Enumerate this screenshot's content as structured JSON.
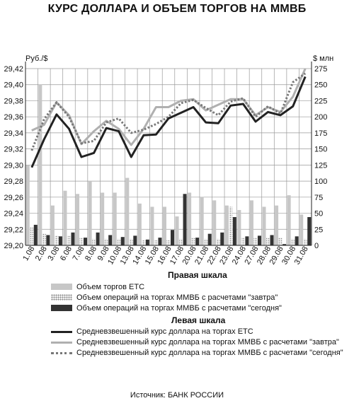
{
  "chart_data": {
    "type": "bar+line",
    "title": "КУРС ДОЛЛАРА И ОБЪЕМ ТОРГОВ НА ММВБ",
    "left_axis_unit": "Руб./$",
    "right_axis_unit": "$ млн",
    "left_ylim": [
      29.2,
      29.42
    ],
    "left_ticks": [
      "29,20",
      "29,22",
      "29,24",
      "29,26",
      "29,28",
      "29,30",
      "29,32",
      "29,34",
      "29,36",
      "29,38",
      "29,40",
      "29,42"
    ],
    "right_ylim": [
      0,
      275
    ],
    "right_ticks": [
      "0",
      "25",
      "50",
      "75",
      "100",
      "125",
      "150",
      "175",
      "200",
      "225",
      "250",
      "275"
    ],
    "categories": [
      "1.08",
      "2.08",
      "3.08",
      "6.08",
      "7.08",
      "8.08",
      "9.08",
      "10.08",
      "13.08",
      "14.08",
      "15.08",
      "16.08",
      "17.08",
      "20.08",
      "21.08",
      "22.08",
      "23.08",
      "24.08",
      "27.08",
      "28.08",
      "29.08",
      "30.08",
      "31.08"
    ],
    "grid": true,
    "legend_sections": [
      {
        "heading": "Правая шкала",
        "items": [
          {
            "key": "etc_volume",
            "label": "Объем торгов ЕТС"
          },
          {
            "key": "tomorrow_volume",
            "label": "Объем операций на торгах ММВБ с расчетами \"завтра\""
          },
          {
            "key": "today_volume",
            "label": "Объем операций на торгах ММВБ с расчетами \"сегодня\""
          }
        ]
      },
      {
        "heading": "Левая шкала",
        "items": [
          {
            "key": "etc_rate",
            "label": "Средневзвешенный курс доллара на торгах ЕТС"
          },
          {
            "key": "tomorrow_rate",
            "label": "Средневзвешенный курс доллара на торгах ММВБ с расчетами \"завтра\""
          },
          {
            "key": "today_rate",
            "label": "Средневзвешенный курс доллара на торгах ММВБ с расчетами \"сегодня\""
          }
        ]
      }
    ],
    "bar_series": [
      {
        "key": "etc_volume",
        "axis": "right",
        "values": [
          125,
          250,
          62,
          85,
          80,
          100,
          82,
          82,
          105,
          65,
          60,
          60,
          45,
          82,
          75,
          70,
          62,
          55,
          70,
          60,
          62,
          78,
          48
        ]
      },
      {
        "key": "tomorrow_volume",
        "axis": "right",
        "values": [
          28,
          18,
          15,
          15,
          12,
          10,
          10,
          10,
          10,
          8,
          8,
          8,
          10,
          12,
          10,
          10,
          60,
          12,
          12,
          12,
          12,
          10,
          10
        ]
      },
      {
        "key": "today_volume",
        "axis": "right",
        "values": [
          32,
          16,
          14,
          20,
          12,
          20,
          16,
          13,
          15,
          9,
          12,
          24,
          80,
          12,
          18,
          20,
          44,
          14,
          15,
          16,
          2,
          14,
          44
        ]
      }
    ],
    "line_series": [
      {
        "key": "etc_rate",
        "axis": "left",
        "values": [
          29.297,
          29.332,
          29.363,
          29.345,
          29.31,
          29.315,
          29.346,
          29.342,
          29.31,
          29.337,
          29.338,
          29.358,
          29.365,
          29.372,
          29.353,
          29.352,
          29.374,
          29.376,
          29.354,
          29.366,
          29.362,
          29.373,
          29.41
        ]
      },
      {
        "key": "tomorrow_rate",
        "axis": "left",
        "values": [
          29.343,
          29.35,
          29.378,
          29.362,
          29.326,
          29.342,
          29.355,
          29.345,
          29.325,
          29.345,
          29.372,
          29.372,
          29.38,
          29.382,
          29.368,
          29.375,
          29.382,
          29.382,
          29.362,
          29.372,
          29.366,
          29.385,
          29.42
        ]
      },
      {
        "key": "today_rate",
        "axis": "left",
        "values": [
          29.318,
          29.357,
          29.378,
          29.36,
          29.327,
          29.33,
          29.353,
          29.358,
          29.34,
          29.344,
          29.351,
          29.36,
          29.377,
          29.381,
          29.371,
          29.362,
          29.379,
          29.383,
          29.36,
          29.373,
          29.364,
          29.403,
          29.414
        ]
      }
    ],
    "source": "Источник: БАНК РОССИИ"
  },
  "colors": {
    "etc_volume": "#c7c7c7",
    "tomorrow_volume": "#eeeeee",
    "today_volume": "#333333",
    "etc_rate": "#222222",
    "tomorrow_rate": "#b0b0b0",
    "today_rate": "#777777",
    "grid": "#9a9a9a"
  }
}
